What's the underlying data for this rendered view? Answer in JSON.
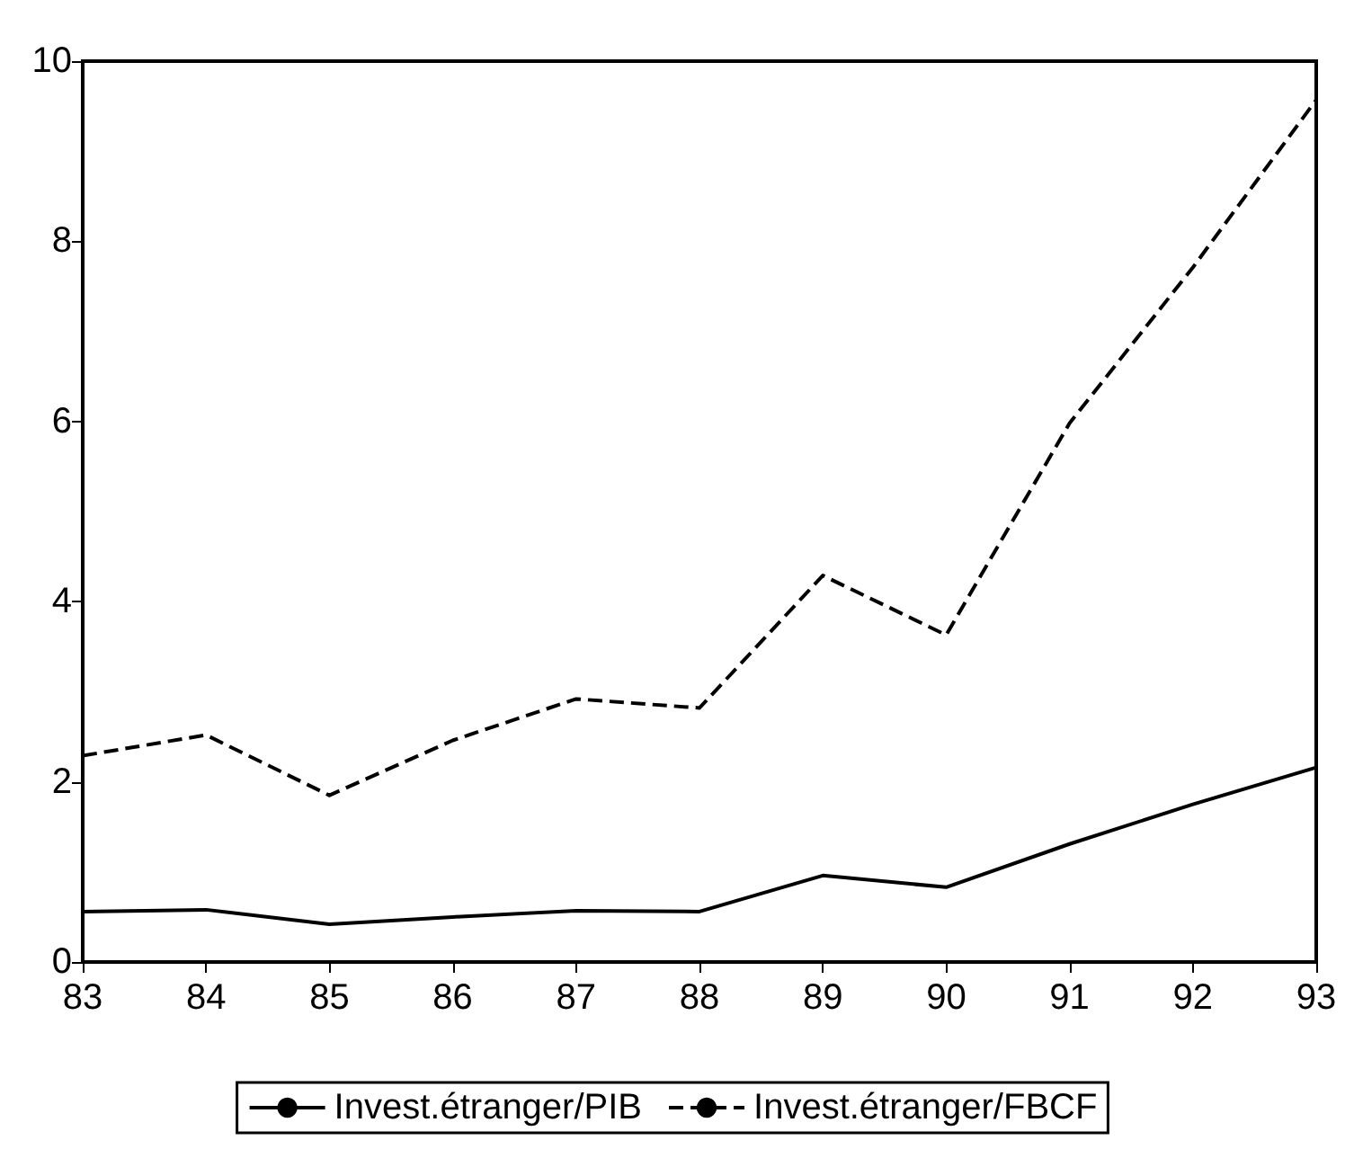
{
  "chart_data": {
    "type": "line",
    "categories": [
      "83",
      "84",
      "85",
      "86",
      "87",
      "88",
      "89",
      "90",
      "91",
      "92",
      "93"
    ],
    "series": [
      {
        "name": "Invest.étranger/PIB",
        "color": "#000000",
        "line_style": "solid",
        "values": [
          0.56,
          0.58,
          0.42,
          0.5,
          0.57,
          0.56,
          0.96,
          0.83,
          1.31,
          1.75,
          2.16
        ]
      },
      {
        "name": "Invest.étranger/FBCF",
        "color": "#000000",
        "line_style": "dashed",
        "values": [
          2.29,
          2.52,
          1.85,
          2.46,
          2.92,
          2.82,
          4.29,
          3.63,
          5.98,
          7.71,
          9.57
        ]
      }
    ],
    "ylim": [
      0,
      10
    ],
    "yticks": [
      0,
      2,
      4,
      6,
      8,
      10
    ],
    "grid": false,
    "legend": "bottom",
    "marker": "none"
  }
}
